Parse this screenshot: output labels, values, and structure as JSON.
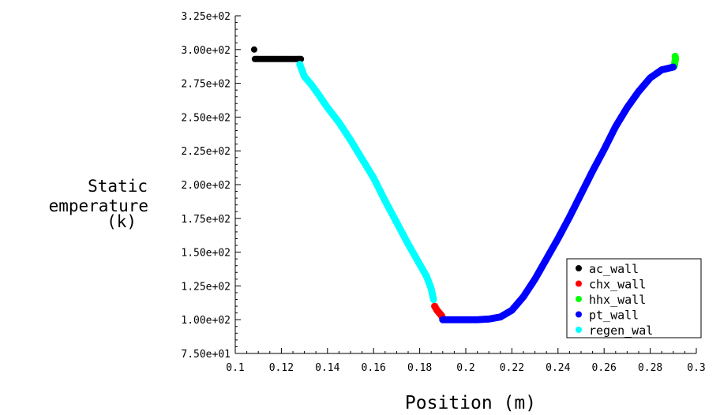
{
  "chart_data": {
    "type": "scatter",
    "title": "",
    "xlabel": "Position (m)",
    "ylabel_lines": [
      "Static",
      "emperature",
      "(k)"
    ],
    "xlim": [
      0.1,
      0.3
    ],
    "ylim": [
      75,
      325
    ],
    "x_ticks": [
      "0.1",
      "0.12",
      "0.14",
      "0.16",
      "0.18",
      "0.2",
      "0.22",
      "0.24",
      "0.26",
      "0.28",
      "0.3"
    ],
    "x_tick_values": [
      0.1,
      0.12,
      0.14,
      0.16,
      0.18,
      0.2,
      0.22,
      0.24,
      0.26,
      0.28,
      0.3
    ],
    "y_ticks": [
      "7.50e+01",
      "1.00e+02",
      "1.25e+02",
      "1.50e+02",
      "1.75e+02",
      "2.00e+02",
      "2.25e+02",
      "2.50e+02",
      "2.75e+02",
      "3.00e+02",
      "3.25e+02"
    ],
    "y_tick_values": [
      75,
      100,
      125,
      150,
      175,
      200,
      225,
      250,
      275,
      300,
      325
    ],
    "legend_position": "bottom-right",
    "series": [
      {
        "name": "ac_wall",
        "color": "#000000",
        "x": [
          0.1082,
          0.1085,
          0.11,
          0.112,
          0.115,
          0.118,
          0.12,
          0.123,
          0.125,
          0.127,
          0.1285
        ],
        "y": [
          300,
          293,
          293,
          293,
          293,
          293,
          293,
          293,
          293,
          293,
          293
        ]
      },
      {
        "name": "chx_wall",
        "color": "#ff0000",
        "x": [
          0.1865,
          0.1875,
          0.1885,
          0.1895,
          0.19
        ],
        "y": [
          110,
          107,
          105,
          103,
          101
        ]
      },
      {
        "name": "hhx_wall",
        "color": "#00ff00",
        "x": [
          0.2905,
          0.2907,
          0.291,
          0.2908
        ],
        "y": [
          288,
          291,
          293,
          295
        ]
      },
      {
        "name": "pt_wall",
        "color": "#0000ff",
        "x": [
          0.19,
          0.195,
          0.2,
          0.205,
          0.21,
          0.215,
          0.22,
          0.225,
          0.23,
          0.235,
          0.24,
          0.245,
          0.25,
          0.255,
          0.26,
          0.265,
          0.27,
          0.275,
          0.28,
          0.285,
          0.29
        ],
        "y": [
          100,
          100,
          100,
          100,
          100.5,
          102,
          107,
          117,
          130,
          145,
          160,
          176,
          193,
          210,
          226,
          243,
          257,
          269,
          279,
          285,
          287
        ]
      },
      {
        "name": "regen_wal",
        "color": "#00ffff",
        "x": [
          0.128,
          0.13,
          0.133,
          0.136,
          0.14,
          0.145,
          0.15,
          0.155,
          0.16,
          0.165,
          0.17,
          0.175,
          0.18,
          0.183,
          0.185,
          0.186
        ],
        "y": [
          289,
          280,
          274,
          267,
          257,
          246,
          233,
          219,
          205,
          188,
          172,
          156,
          141,
          132,
          123,
          115
        ]
      }
    ]
  }
}
